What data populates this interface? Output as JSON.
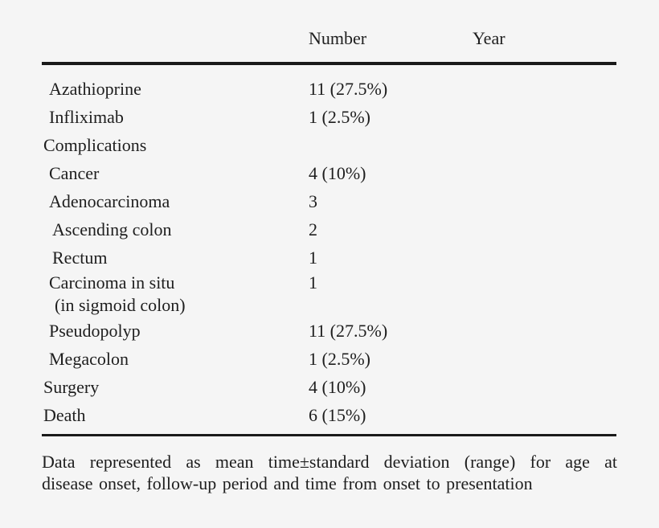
{
  "table": {
    "columns": [
      "Number",
      "Year"
    ],
    "rows": [
      {
        "label": "Azathioprine",
        "indent": 1,
        "number": "11 (27.5%)",
        "year": ""
      },
      {
        "label": "Infliximab",
        "indent": 1,
        "number": "1 (2.5%)",
        "year": ""
      },
      {
        "label": "Complications",
        "indent": 0,
        "number": "",
        "year": ""
      },
      {
        "label": "Cancer",
        "indent": 1,
        "number": "4 (10%)",
        "year": ""
      },
      {
        "label": "Adenocarcinoma",
        "indent": 1,
        "number": "3",
        "year": ""
      },
      {
        "label": "Ascending colon",
        "indent": 2,
        "number": "2",
        "year": ""
      },
      {
        "label": "Rectum",
        "indent": 2,
        "number": "1",
        "year": ""
      },
      {
        "label": "Carcinoma in situ",
        "label_line2": "(in sigmoid colon)",
        "indent": 1,
        "number": "1",
        "year": ""
      },
      {
        "label": "Pseudopolyp",
        "indent": 1,
        "number": "11 (27.5%)",
        "year": ""
      },
      {
        "label": "Megacolon",
        "indent": 1,
        "number": "1 (2.5%)",
        "year": ""
      },
      {
        "label": "Surgery",
        "indent": 0,
        "number": "4 (10%)",
        "year": ""
      },
      {
        "label": "Death",
        "indent": 0,
        "number": "6 (15%)",
        "year": ""
      }
    ]
  },
  "footnote": {
    "lines": [
      "Data represented as mean time±standard deviation (range) for age at",
      "disease onset, follow-up period and time from onset to presentation"
    ]
  },
  "colors": {
    "background": "#f5f5f5",
    "text": "#1e1e1e",
    "rule": "#1a1a1a"
  }
}
